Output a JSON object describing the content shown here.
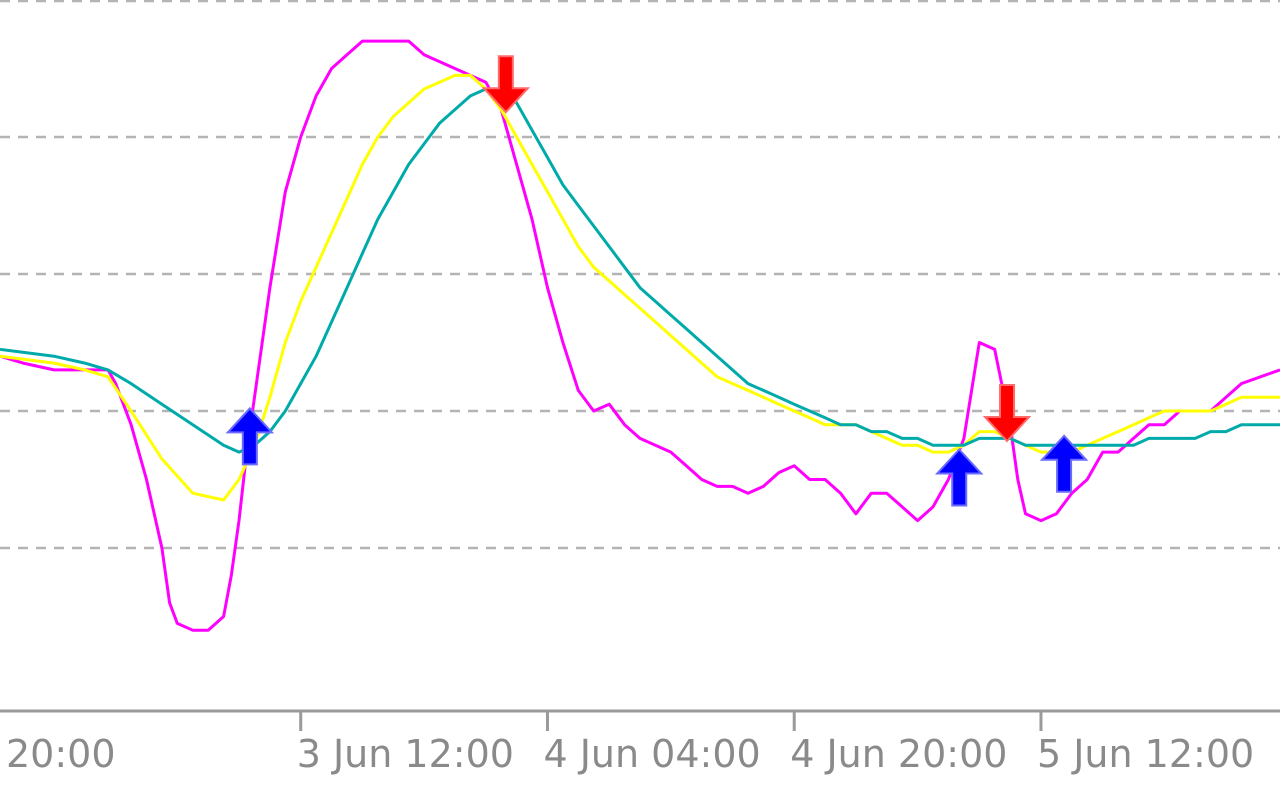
{
  "chart_data": {
    "type": "line",
    "title": "",
    "xlabel": "",
    "ylabel": "",
    "x_ticks": [
      {
        "label": "20:00",
        "x": 0
      },
      {
        "label": "3 Jun 12:00",
        "x": 16
      },
      {
        "label": "4 Jun 04:00",
        "x": 32
      },
      {
        "label": "4 Jun 20:00",
        "x": 48
      },
      {
        "label": "5 Jun 12:00",
        "x": 64
      }
    ],
    "xlim": [
      -3.5,
      79.5
    ],
    "ylim": [
      0,
      100
    ],
    "grid": "horizontal dashed",
    "grid_levels": [
      100,
      80,
      60,
      40,
      20
    ],
    "series": [
      {
        "key": "fast",
        "color": "#ff00ff",
        "points": [
          [
            -3.5,
            48
          ],
          [
            -2,
            47
          ],
          [
            0,
            46
          ],
          [
            2,
            46
          ],
          [
            3.5,
            46
          ],
          [
            4,
            44
          ],
          [
            5,
            38
          ],
          [
            6,
            30
          ],
          [
            7,
            20
          ],
          [
            7.5,
            12
          ],
          [
            8,
            9
          ],
          [
            9,
            8
          ],
          [
            10,
            8
          ],
          [
            11,
            10
          ],
          [
            11.5,
            16
          ],
          [
            12,
            24
          ],
          [
            12.5,
            34
          ],
          [
            13,
            42
          ],
          [
            14,
            58
          ],
          [
            15,
            72
          ],
          [
            16,
            80
          ],
          [
            17,
            86
          ],
          [
            18,
            90
          ],
          [
            19,
            92
          ],
          [
            20,
            94
          ],
          [
            21,
            94
          ],
          [
            23,
            94
          ],
          [
            24,
            92
          ],
          [
            25,
            91
          ],
          [
            26,
            90
          ],
          [
            27,
            89
          ],
          [
            28,
            88
          ],
          [
            29,
            84
          ],
          [
            30,
            76
          ],
          [
            31,
            68
          ],
          [
            32,
            58
          ],
          [
            33,
            50
          ],
          [
            34,
            43
          ],
          [
            35,
            40
          ],
          [
            36,
            41
          ],
          [
            37,
            38
          ],
          [
            38,
            36
          ],
          [
            40,
            34
          ],
          [
            41,
            32
          ],
          [
            42,
            30
          ],
          [
            43,
            29
          ],
          [
            44,
            29
          ],
          [
            45,
            28
          ],
          [
            46,
            29
          ],
          [
            47,
            31
          ],
          [
            48,
            32
          ],
          [
            49,
            30
          ],
          [
            50,
            30
          ],
          [
            51,
            28
          ],
          [
            52,
            25
          ],
          [
            53,
            28
          ],
          [
            54,
            28
          ],
          [
            55,
            26
          ],
          [
            56,
            24
          ],
          [
            57,
            26
          ],
          [
            58,
            30
          ],
          [
            59,
            36
          ],
          [
            60,
            50
          ],
          [
            61,
            49
          ],
          [
            62,
            38
          ],
          [
            62.5,
            30
          ],
          [
            63,
            25
          ],
          [
            64,
            24
          ],
          [
            65,
            25
          ],
          [
            66,
            28
          ],
          [
            67,
            30
          ],
          [
            68,
            34
          ],
          [
            69,
            34
          ],
          [
            70,
            36
          ],
          [
            71,
            38
          ],
          [
            72,
            38
          ],
          [
            73,
            40
          ],
          [
            75,
            40
          ],
          [
            76,
            42
          ],
          [
            77,
            44
          ],
          [
            79.5,
            46
          ]
        ]
      },
      {
        "key": "medium",
        "color": "#ffff00",
        "points": [
          [
            -3.5,
            48
          ],
          [
            0,
            47
          ],
          [
            2,
            46
          ],
          [
            3.5,
            45
          ],
          [
            5,
            40
          ],
          [
            7,
            33
          ],
          [
            9,
            28
          ],
          [
            11,
            27
          ],
          [
            12,
            30
          ],
          [
            13,
            35
          ],
          [
            14,
            42
          ],
          [
            15,
            50
          ],
          [
            16,
            56
          ],
          [
            17,
            61
          ],
          [
            18,
            66
          ],
          [
            19,
            71
          ],
          [
            20,
            76
          ],
          [
            21,
            80
          ],
          [
            22,
            83
          ],
          [
            23,
            85
          ],
          [
            24,
            87
          ],
          [
            25,
            88
          ],
          [
            26,
            89
          ],
          [
            27,
            89
          ],
          [
            28,
            87
          ],
          [
            29,
            84
          ],
          [
            30,
            80
          ],
          [
            31,
            76
          ],
          [
            32,
            72
          ],
          [
            33,
            68
          ],
          [
            34,
            64
          ],
          [
            35,
            61
          ],
          [
            36,
            59
          ],
          [
            37,
            57
          ],
          [
            38,
            55
          ],
          [
            39,
            53
          ],
          [
            40,
            51
          ],
          [
            41,
            49
          ],
          [
            42,
            47
          ],
          [
            43,
            45
          ],
          [
            44,
            44
          ],
          [
            45,
            43
          ],
          [
            46,
            42
          ],
          [
            47,
            41
          ],
          [
            48,
            40
          ],
          [
            49,
            39
          ],
          [
            50,
            38
          ],
          [
            51,
            38
          ],
          [
            52,
            38
          ],
          [
            53,
            37
          ],
          [
            54,
            36
          ],
          [
            55,
            35
          ],
          [
            56,
            35
          ],
          [
            57,
            34
          ],
          [
            58,
            34
          ],
          [
            59,
            35
          ],
          [
            60,
            37
          ],
          [
            61,
            37
          ],
          [
            62,
            36
          ],
          [
            63,
            35
          ],
          [
            64,
            34
          ],
          [
            65,
            34
          ],
          [
            66,
            34
          ],
          [
            67,
            35
          ],
          [
            68,
            36
          ],
          [
            69,
            37
          ],
          [
            70,
            38
          ],
          [
            71,
            39
          ],
          [
            72,
            40
          ],
          [
            73,
            40
          ],
          [
            74,
            40
          ],
          [
            75,
            40
          ],
          [
            76,
            41
          ],
          [
            77,
            42
          ],
          [
            78,
            42
          ],
          [
            79.5,
            42
          ]
        ]
      },
      {
        "key": "slow",
        "color": "#00aaaa",
        "points": [
          [
            -3.5,
            49
          ],
          [
            0,
            48
          ],
          [
            2,
            47
          ],
          [
            3.5,
            46
          ],
          [
            5,
            44
          ],
          [
            7,
            41
          ],
          [
            9,
            38
          ],
          [
            11,
            35
          ],
          [
            12,
            34
          ],
          [
            13,
            35
          ],
          [
            14,
            37
          ],
          [
            15,
            40
          ],
          [
            16,
            44
          ],
          [
            17,
            48
          ],
          [
            18,
            53
          ],
          [
            19,
            58
          ],
          [
            20,
            63
          ],
          [
            21,
            68
          ],
          [
            22,
            72
          ],
          [
            23,
            76
          ],
          [
            24,
            79
          ],
          [
            25,
            82
          ],
          [
            26,
            84
          ],
          [
            27,
            86
          ],
          [
            28,
            87
          ],
          [
            29,
            87
          ],
          [
            30,
            85
          ],
          [
            31,
            81
          ],
          [
            32,
            77
          ],
          [
            33,
            73
          ],
          [
            34,
            70
          ],
          [
            35,
            67
          ],
          [
            36,
            64
          ],
          [
            37,
            61
          ],
          [
            38,
            58
          ],
          [
            39,
            56
          ],
          [
            40,
            54
          ],
          [
            41,
            52
          ],
          [
            42,
            50
          ],
          [
            43,
            48
          ],
          [
            44,
            46
          ],
          [
            45,
            44
          ],
          [
            46,
            43
          ],
          [
            47,
            42
          ],
          [
            48,
            41
          ],
          [
            49,
            40
          ],
          [
            50,
            39
          ],
          [
            51,
            38
          ],
          [
            52,
            38
          ],
          [
            53,
            37
          ],
          [
            54,
            37
          ],
          [
            55,
            36
          ],
          [
            56,
            36
          ],
          [
            57,
            35
          ],
          [
            58,
            35
          ],
          [
            59,
            35
          ],
          [
            60,
            36
          ],
          [
            61,
            36
          ],
          [
            62,
            36
          ],
          [
            63,
            35
          ],
          [
            64,
            35
          ],
          [
            65,
            35
          ],
          [
            66,
            35
          ],
          [
            67,
            35
          ],
          [
            68,
            35
          ],
          [
            69,
            35
          ],
          [
            70,
            35
          ],
          [
            71,
            36
          ],
          [
            72,
            36
          ],
          [
            73,
            36
          ],
          [
            74,
            36
          ],
          [
            75,
            37
          ],
          [
            76,
            37
          ],
          [
            77,
            38
          ],
          [
            78,
            38
          ],
          [
            79.5,
            38
          ]
        ]
      }
    ],
    "signals": [
      {
        "type": "buy",
        "x": 12.7,
        "y": 36,
        "color": "#0000ff"
      },
      {
        "type": "sell",
        "x": 29.3,
        "y": 88,
        "color": "#ff0000"
      },
      {
        "type": "buy",
        "x": 58.7,
        "y": 30,
        "color": "#0000ff"
      },
      {
        "type": "sell",
        "x": 61.8,
        "y": 40,
        "color": "#ff0000"
      },
      {
        "type": "buy",
        "x": 65.5,
        "y": 32,
        "color": "#0000ff"
      }
    ]
  }
}
